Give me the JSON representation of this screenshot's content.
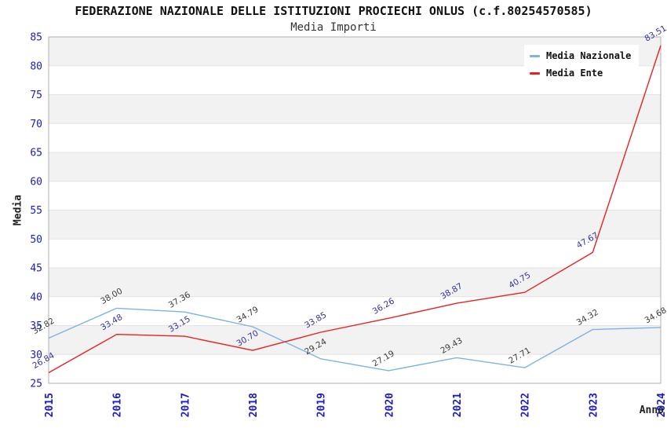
{
  "chart_data": {
    "type": "line",
    "title": "FEDERAZIONE NAZIONALE DELLE ISTITUZIONI PROCIECHI ONLUS (c.f.80254570585)",
    "subtitle": "Media Importi",
    "xlabel": "Anno",
    "ylabel": "Media",
    "categories": [
      "2015",
      "2016",
      "2017",
      "2018",
      "2019",
      "2020",
      "2021",
      "2022",
      "2023",
      "2024"
    ],
    "ylim": [
      25,
      85
    ],
    "ytick_step": 5,
    "grid": "horizontal gridlines with alternating gray/white bands",
    "legend_position": "top-right",
    "point_labels": "each point labeled with value, rotated",
    "series": [
      {
        "name": "Media Nazionale",
        "color": "#7FB2E5",
        "label_color": "#3C3C3C",
        "values": [
          32.82,
          38.0,
          37.36,
          34.79,
          29.24,
          27.19,
          29.43,
          27.71,
          34.32,
          34.68
        ]
      },
      {
        "name": "Media Ente",
        "color": "#E62222",
        "label_color": "#333399",
        "values": [
          26.84,
          33.48,
          33.15,
          30.7,
          33.85,
          36.26,
          38.87,
          40.75,
          47.67,
          83.51
        ]
      }
    ]
  },
  "colors": {
    "band": "#f2f2f2",
    "grid": "#e3e3e3",
    "frame": "#b0b0b0",
    "tick": "#1a1acc",
    "background": "#ffffff"
  }
}
